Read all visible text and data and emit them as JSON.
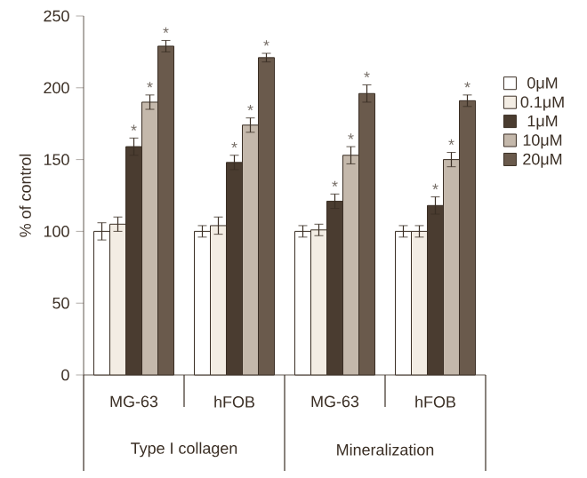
{
  "chart_data": {
    "type": "bar",
    "ylabel": "% of control",
    "categories": [
      "MG-63",
      "hFOB",
      "MG-63",
      "hFOB"
    ],
    "series": [
      {
        "name": "0μM",
        "color": "#ffffff",
        "values": [
          100,
          100,
          100,
          100
        ],
        "errors": [
          6,
          4,
          4,
          4
        ]
      },
      {
        "name": "0.1μM",
        "color": "#f3ede4",
        "values": [
          105,
          104,
          101,
          100
        ],
        "errors": [
          5,
          6,
          4,
          4
        ]
      },
      {
        "name": "1μM",
        "color": "#4a3c30",
        "values": [
          159,
          148,
          121,
          118
        ],
        "errors": [
          6,
          5,
          5,
          6
        ],
        "value_labels": [
          "*",
          "*",
          "*",
          "*"
        ]
      },
      {
        "name": "10μM",
        "color": "#c4b8ab",
        "values": [
          190,
          174,
          153,
          150
        ],
        "errors": [
          5,
          5,
          6,
          5
        ],
        "value_labels": [
          "*",
          "*",
          "*",
          "*"
        ]
      },
      {
        "name": "20μM",
        "color": "#6a5a4c",
        "values": [
          229,
          221,
          196,
          191
        ],
        "errors": [
          4,
          3,
          6,
          4
        ],
        "value_labels": [
          "*",
          "*",
          "*",
          "*"
        ]
      }
    ],
    "annotations": [
      "Type I collagen",
      "Mineralization"
    ],
    "ylim": [
      0,
      250
    ],
    "yticks": [
      0,
      50,
      100,
      150,
      200,
      250
    ],
    "legend": "right",
    "grid": false
  }
}
